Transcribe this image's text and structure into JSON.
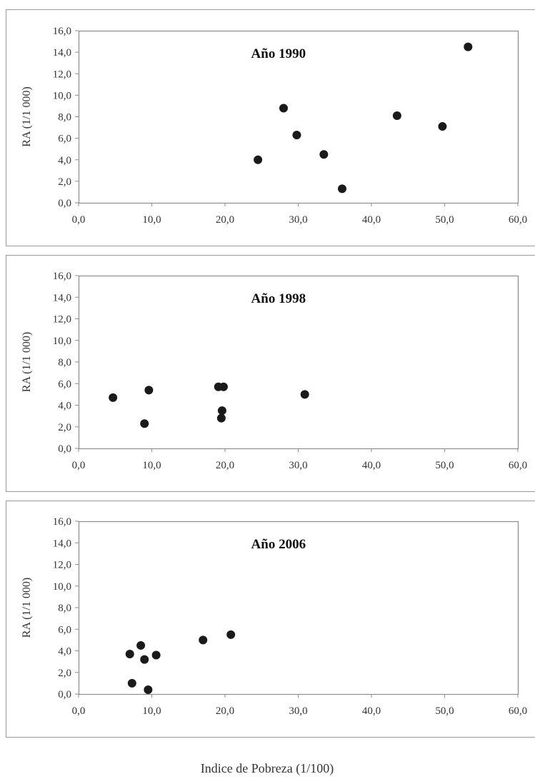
{
  "chart_data": [
    {
      "type": "scatter",
      "title": "Año 1990",
      "ylabel": "RA (1/1 000)",
      "xlim": [
        0,
        60
      ],
      "ylim": [
        0,
        16
      ],
      "x_ticks": [
        "0,0",
        "10,0",
        "20,0",
        "30,0",
        "40,0",
        "50,0",
        "60,0"
      ],
      "y_ticks": [
        "0,0",
        "2,0",
        "4,0",
        "6,0",
        "8,0",
        "10,0",
        "12,0",
        "14,0",
        "16,0"
      ],
      "grid": false,
      "points": [
        {
          "x": 24.5,
          "y": 4.0
        },
        {
          "x": 28.0,
          "y": 8.8
        },
        {
          "x": 29.8,
          "y": 6.3
        },
        {
          "x": 33.5,
          "y": 4.5
        },
        {
          "x": 36.0,
          "y": 1.3
        },
        {
          "x": 43.5,
          "y": 8.1
        },
        {
          "x": 49.7,
          "y": 7.1
        },
        {
          "x": 53.2,
          "y": 14.5
        }
      ]
    },
    {
      "type": "scatter",
      "title": "Año 1998",
      "ylabel": "RA (1/1 000)",
      "xlim": [
        0,
        60
      ],
      "ylim": [
        0,
        16
      ],
      "x_ticks": [
        "0,0",
        "10,0",
        "20,0",
        "30,0",
        "40,0",
        "50,0",
        "60,0"
      ],
      "y_ticks": [
        "0,0",
        "2,0",
        "4,0",
        "6,0",
        "8,0",
        "10,0",
        "12,0",
        "14,0",
        "16,0"
      ],
      "grid": false,
      "points": [
        {
          "x": 4.7,
          "y": 4.7
        },
        {
          "x": 9.0,
          "y": 2.3
        },
        {
          "x": 9.6,
          "y": 5.4
        },
        {
          "x": 19.1,
          "y": 5.7
        },
        {
          "x": 19.5,
          "y": 2.8
        },
        {
          "x": 19.6,
          "y": 3.5
        },
        {
          "x": 19.8,
          "y": 5.7
        },
        {
          "x": 30.9,
          "y": 5.0
        }
      ]
    },
    {
      "type": "scatter",
      "title": "Año 2006",
      "ylabel": "RA (1/1 000)",
      "xlim": [
        0,
        60
      ],
      "ylim": [
        0,
        16
      ],
      "x_ticks": [
        "0,0",
        "10,0",
        "20,0",
        "30,0",
        "40,0",
        "50,0",
        "60,0"
      ],
      "y_ticks": [
        "0,0",
        "2,0",
        "4,0",
        "6,0",
        "8,0",
        "10,0",
        "12,0",
        "14,0",
        "16,0"
      ],
      "grid": false,
      "points": [
        {
          "x": 7.0,
          "y": 3.7
        },
        {
          "x": 7.3,
          "y": 1.0
        },
        {
          "x": 8.5,
          "y": 4.5
        },
        {
          "x": 9.0,
          "y": 3.2
        },
        {
          "x": 9.5,
          "y": 0.4
        },
        {
          "x": 10.6,
          "y": 3.6
        },
        {
          "x": 17.0,
          "y": 5.0
        },
        {
          "x": 20.8,
          "y": 5.5
        }
      ]
    }
  ],
  "xlabel": "Indice de Pobreza (1/100)",
  "colors": {
    "marker": "#1a1a1a",
    "axis": "#8c8c8c",
    "frame": "#9a9a9a"
  }
}
